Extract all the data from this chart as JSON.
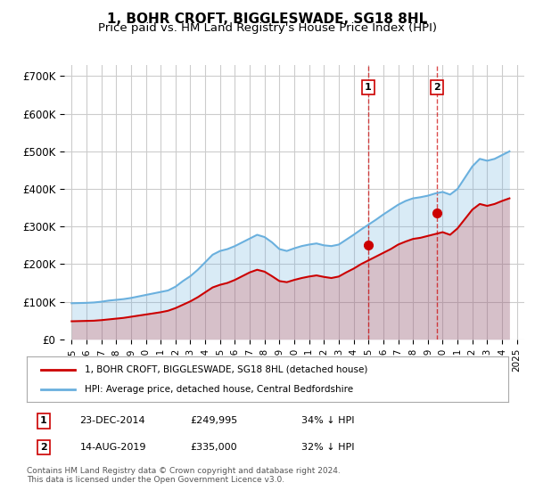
{
  "title": "1, BOHR CROFT, BIGGLESWADE, SG18 8HL",
  "subtitle": "Price paid vs. HM Land Registry's House Price Index (HPI)",
  "ylabel_ticks": [
    "£0",
    "£100K",
    "£200K",
    "£300K",
    "£400K",
    "£500K",
    "£600K",
    "£700K"
  ],
  "ytick_values": [
    0,
    100000,
    200000,
    300000,
    400000,
    500000,
    600000,
    700000
  ],
  "ylim": [
    0,
    730000
  ],
  "background_color": "#ffffff",
  "grid_color": "#cccccc",
  "hpi_color": "#6ab0de",
  "price_color": "#cc0000",
  "hpi_data": {
    "years": [
      1995.0,
      1995.5,
      1996.0,
      1996.5,
      1997.0,
      1997.5,
      1998.0,
      1998.5,
      1999.0,
      1999.5,
      2000.0,
      2000.5,
      2001.0,
      2001.5,
      2002.0,
      2002.5,
      2003.0,
      2003.5,
      2004.0,
      2004.5,
      2005.0,
      2005.5,
      2006.0,
      2006.5,
      2007.0,
      2007.5,
      2008.0,
      2008.5,
      2009.0,
      2009.5,
      2010.0,
      2010.5,
      2011.0,
      2011.5,
      2012.0,
      2012.5,
      2013.0,
      2013.5,
      2014.0,
      2014.5,
      2015.0,
      2015.5,
      2016.0,
      2016.5,
      2017.0,
      2017.5,
      2018.0,
      2018.5,
      2019.0,
      2019.5,
      2020.0,
      2020.5,
      2021.0,
      2021.5,
      2022.0,
      2022.5,
      2023.0,
      2023.5,
      2024.0,
      2024.5
    ],
    "values": [
      96000,
      96500,
      97000,
      98000,
      100000,
      103000,
      105000,
      107000,
      110000,
      114000,
      118000,
      122000,
      126000,
      130000,
      140000,
      155000,
      168000,
      185000,
      205000,
      225000,
      235000,
      240000,
      248000,
      258000,
      268000,
      278000,
      272000,
      258000,
      240000,
      235000,
      242000,
      248000,
      252000,
      255000,
      250000,
      248000,
      252000,
      265000,
      278000,
      292000,
      305000,
      318000,
      332000,
      345000,
      358000,
      368000,
      375000,
      378000,
      382000,
      388000,
      392000,
      385000,
      400000,
      430000,
      460000,
      480000,
      475000,
      480000,
      490000,
      500000
    ]
  },
  "price_data": {
    "years": [
      1995.0,
      1995.5,
      1996.0,
      1996.5,
      1997.0,
      1997.5,
      1998.0,
      1998.5,
      1999.0,
      1999.5,
      2000.0,
      2000.5,
      2001.0,
      2001.5,
      2002.0,
      2002.5,
      2003.0,
      2003.5,
      2004.0,
      2004.5,
      2005.0,
      2005.5,
      2006.0,
      2006.5,
      2007.0,
      2007.5,
      2008.0,
      2008.5,
      2009.0,
      2009.5,
      2010.0,
      2010.5,
      2011.0,
      2011.5,
      2012.0,
      2012.5,
      2013.0,
      2013.5,
      2014.0,
      2014.5,
      2015.0,
      2015.5,
      2016.0,
      2016.5,
      2017.0,
      2017.5,
      2018.0,
      2018.5,
      2019.0,
      2019.5,
      2020.0,
      2020.5,
      2021.0,
      2021.5,
      2022.0,
      2022.5,
      2023.0,
      2023.5,
      2024.0,
      2024.5
    ],
    "values": [
      48000,
      48500,
      49000,
      49500,
      51000,
      53000,
      55000,
      57000,
      60000,
      63000,
      66000,
      69000,
      72000,
      76000,
      83000,
      92000,
      101000,
      112000,
      125000,
      138000,
      145000,
      150000,
      158000,
      168000,
      178000,
      185000,
      180000,
      168000,
      155000,
      152000,
      158000,
      163000,
      167000,
      170000,
      166000,
      163000,
      167000,
      178000,
      188000,
      200000,
      210000,
      220000,
      230000,
      240000,
      252000,
      260000,
      267000,
      270000,
      275000,
      280000,
      285000,
      278000,
      295000,
      320000,
      345000,
      360000,
      355000,
      360000,
      368000,
      375000
    ]
  },
  "point1": {
    "year": 2014.97,
    "value": 249995,
    "label": "1",
    "date": "23-DEC-2014",
    "price": "£249,995",
    "hpi_pct": "34% ↓ HPI"
  },
  "point2": {
    "year": 2019.62,
    "value": 335000,
    "label": "2",
    "date": "14-AUG-2019",
    "price": "£335,000",
    "hpi_pct": "32% ↓ HPI"
  },
  "vline1_year": 2014.97,
  "vline2_year": 2019.62,
  "legend_label_price": "1, BOHR CROFT, BIGGLESWADE, SG18 8HL (detached house)",
  "legend_label_hpi": "HPI: Average price, detached house, Central Bedfordshire",
  "footnote": "Contains HM Land Registry data © Crown copyright and database right 2024.\nThis data is licensed under the Open Government Licence v3.0.",
  "title_fontsize": 11,
  "subtitle_fontsize": 9.5,
  "xtick_years": [
    1995,
    1996,
    1997,
    1998,
    1999,
    2000,
    2001,
    2002,
    2003,
    2004,
    2005,
    2006,
    2007,
    2008,
    2009,
    2010,
    2011,
    2012,
    2013,
    2014,
    2015,
    2016,
    2017,
    2018,
    2019,
    2020,
    2021,
    2022,
    2023,
    2024,
    2025
  ]
}
